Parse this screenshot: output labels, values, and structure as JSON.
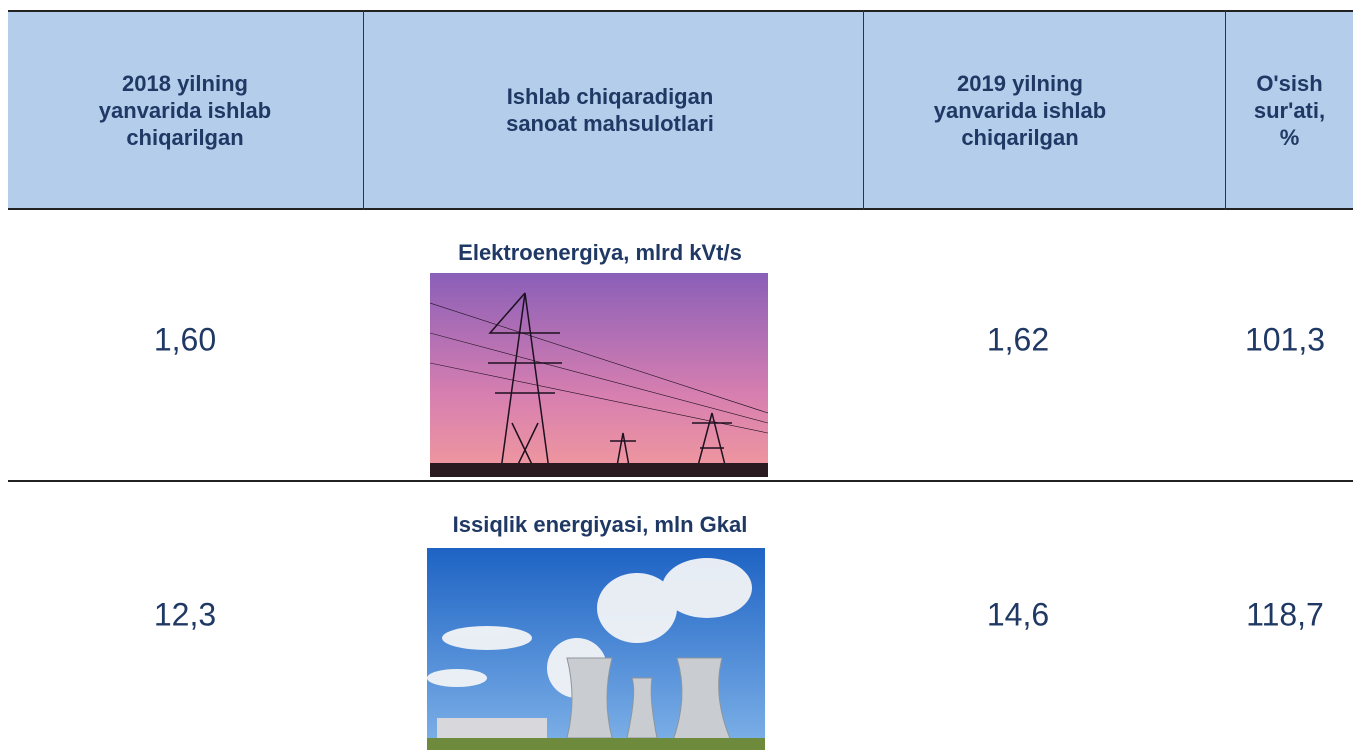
{
  "table": {
    "header": [
      "2018 yilning yanvarida ishlab chiqarilgan",
      "Ishlab chiqaradigan sanoat mahsulotlari",
      "2019 yilning yanvarida ishlab chiqarilgan",
      "O'sish sur'ati, %"
    ],
    "rows": [
      [
        "1,60",
        "Elektroenergiya, mlrd kVt/s",
        "1,62",
        "101,3"
      ],
      [
        "12,3",
        "Issiqlik energiyasi, mln Gkal",
        "14,6",
        "118,7"
      ]
    ]
  }
}
